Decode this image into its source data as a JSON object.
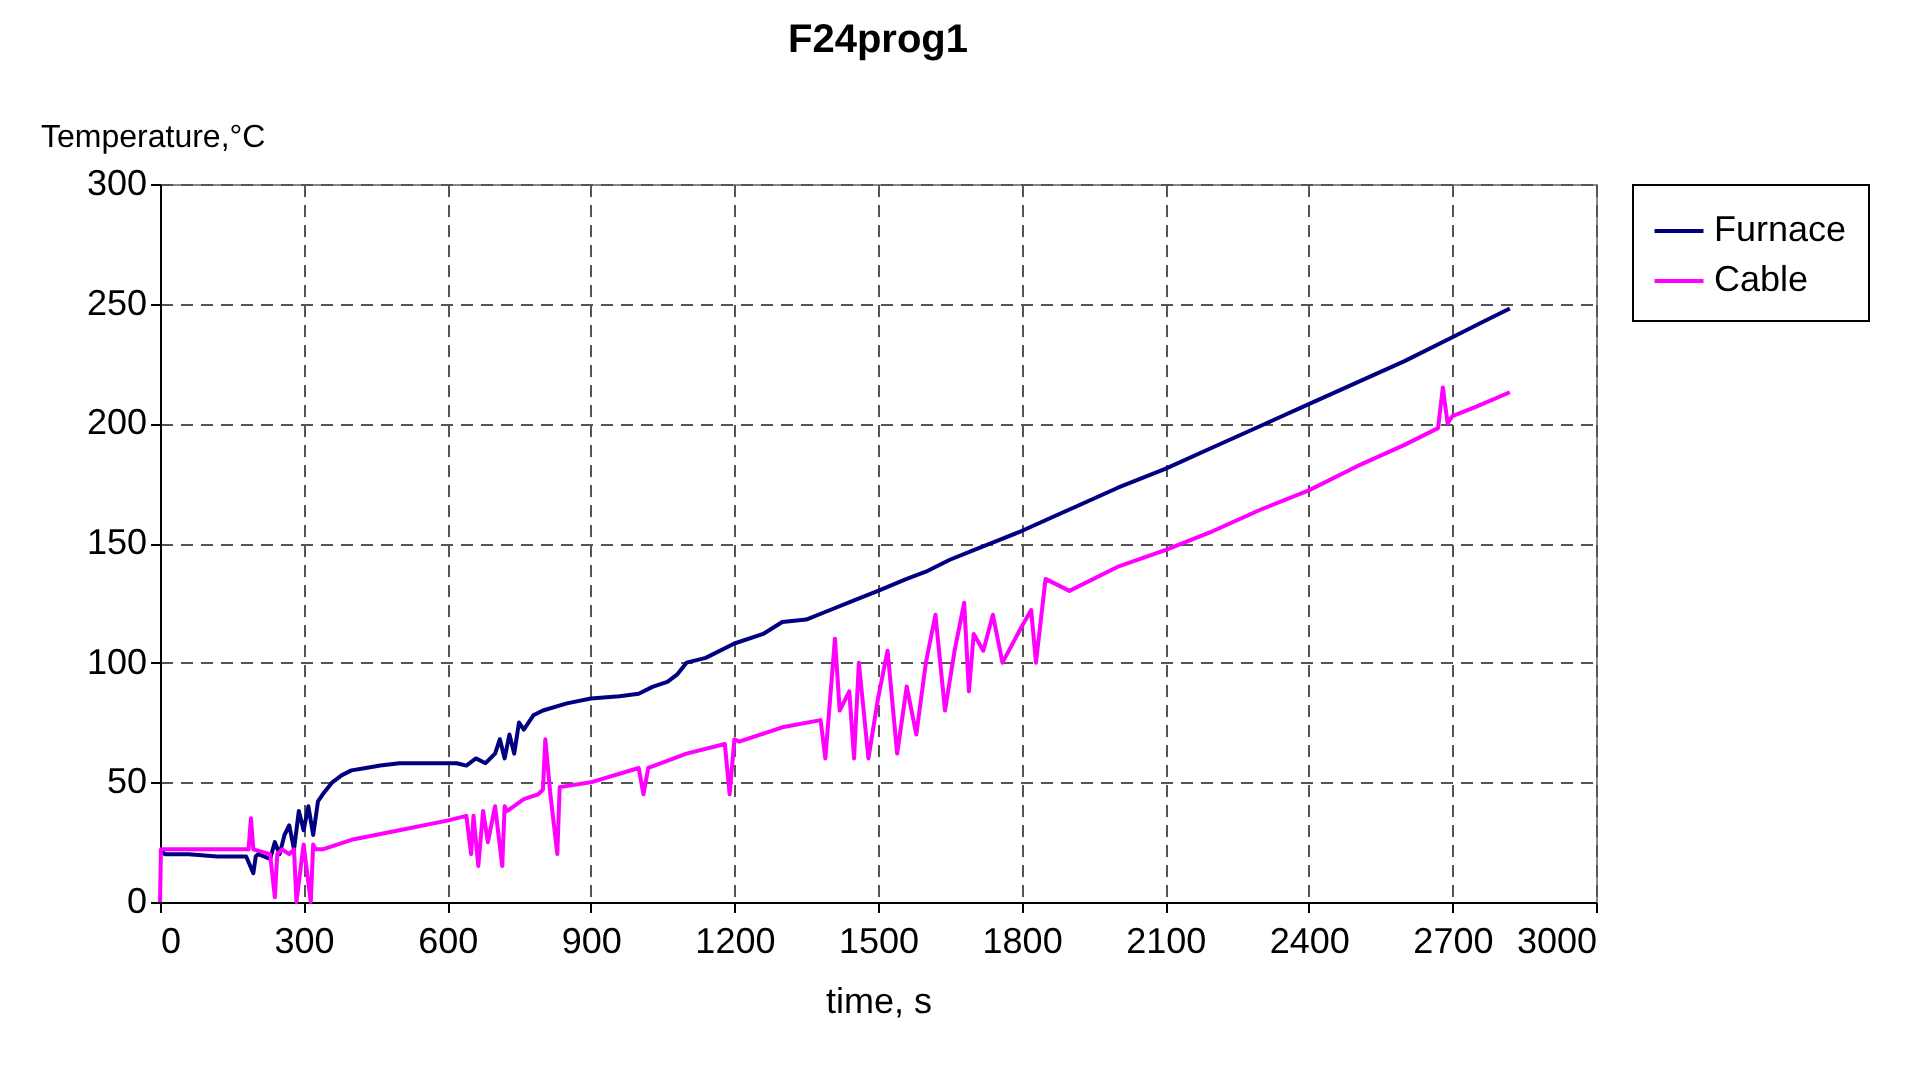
{
  "chart_data": {
    "type": "line",
    "title": "F24prog1",
    "xlabel": "time, s",
    "ylabel": "Temperature,°C",
    "xlim": [
      0,
      3000
    ],
    "xticks": [
      0,
      300,
      600,
      900,
      1200,
      1500,
      1800,
      2100,
      2400,
      2700,
      3000
    ],
    "ylim": [
      0,
      300
    ],
    "yticks": [
      0,
      50,
      100,
      150,
      200,
      250,
      300
    ],
    "grid": true,
    "line_style": "solid",
    "legend": "right",
    "series": [
      {
        "name": "Furnace",
        "color": "#000080",
        "x": [
          0,
          10,
          60,
          120,
          180,
          195,
          200,
          205,
          230,
          240,
          250,
          260,
          270,
          280,
          290,
          300,
          310,
          320,
          330,
          340,
          360,
          380,
          400,
          430,
          460,
          500,
          560,
          620,
          640,
          660,
          680,
          700,
          710,
          720,
          730,
          740,
          750,
          760,
          780,
          800,
          850,
          900,
          960,
          1000,
          1030,
          1060,
          1080,
          1100,
          1140,
          1200,
          1260,
          1300,
          1350,
          1400,
          1450,
          1500,
          1560,
          1600,
          1650,
          1700,
          1750,
          1800,
          1900,
          2000,
          2100,
          2200,
          2300,
          2400,
          2500,
          2600,
          2700,
          2760,
          2820
        ],
        "values": [
          22,
          20,
          20,
          19,
          19,
          12,
          19,
          20,
          18,
          25,
          20,
          28,
          32,
          22,
          38,
          30,
          40,
          28,
          42,
          45,
          50,
          53,
          55,
          56,
          57,
          58,
          58,
          58,
          57,
          60,
          58,
          62,
          68,
          60,
          70,
          62,
          75,
          72,
          78,
          80,
          83,
          85,
          86,
          87,
          90,
          92,
          95,
          100,
          102,
          108,
          112,
          117,
          118,
          122,
          126,
          130,
          135,
          138,
          143,
          147,
          151,
          155,
          164,
          173,
          181,
          190,
          199,
          208,
          217,
          226,
          236,
          242,
          248
        ]
      },
      {
        "name": "Cable",
        "color": "#ff00ff",
        "x": [
          0,
          2,
          4,
          60,
          120,
          185,
          190,
          195,
          230,
          240,
          245,
          255,
          270,
          280,
          285,
          300,
          315,
          320,
          325,
          340,
          400,
          500,
          600,
          640,
          650,
          655,
          665,
          675,
          685,
          700,
          715,
          720,
          725,
          760,
          790,
          800,
          805,
          815,
          830,
          835,
          900,
          1000,
          1010,
          1020,
          1100,
          1180,
          1190,
          1200,
          1210,
          1300,
          1380,
          1390,
          1400,
          1410,
          1420,
          1440,
          1450,
          1460,
          1480,
          1500,
          1510,
          1520,
          1540,
          1560,
          1580,
          1600,
          1620,
          1640,
          1660,
          1680,
          1690,
          1700,
          1720,
          1740,
          1760,
          1800,
          1820,
          1830,
          1850,
          1900,
          2000,
          2100,
          2200,
          2300,
          2400,
          2500,
          2600,
          2670,
          2680,
          2690,
          2700,
          2750,
          2820
        ],
        "values": [
          0,
          22,
          22,
          22,
          22,
          22,
          35,
          22,
          20,
          2,
          20,
          22,
          20,
          22,
          0,
          24,
          0,
          24,
          22,
          22,
          26,
          30,
          34,
          36,
          20,
          36,
          15,
          38,
          25,
          40,
          15,
          40,
          38,
          43,
          45,
          47,
          68,
          46,
          20,
          48,
          50,
          56,
          45,
          56,
          62,
          66,
          45,
          68,
          67,
          73,
          76,
          60,
          85,
          110,
          80,
          88,
          60,
          100,
          60,
          85,
          95,
          105,
          62,
          90,
          70,
          100,
          120,
          80,
          105,
          125,
          88,
          112,
          105,
          120,
          100,
          115,
          122,
          100,
          135,
          130,
          140,
          147,
          155,
          164,
          172,
          182,
          191,
          198,
          215,
          200,
          203,
          207,
          213
        ]
      }
    ]
  }
}
